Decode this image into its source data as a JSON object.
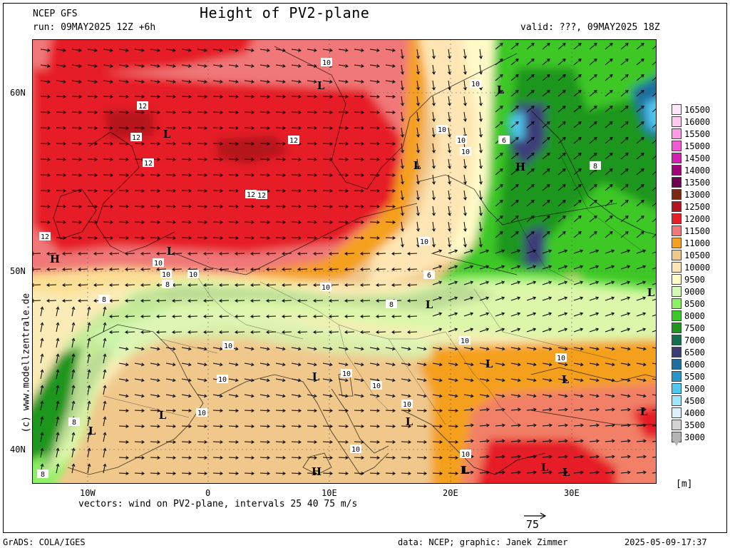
{
  "header": {
    "model": "NCEP GFS",
    "run": "run: 09MAY2025 12Z +6h",
    "title": "Height of PV2-plane",
    "valid": "valid: ???, 09MAY2025 18Z"
  },
  "footer": {
    "vectors": "vectors: wind on PV2-plane, intervals 25 40 75 m/s",
    "scale_value": "75",
    "grads": "GrADS: COLA/IGES",
    "source": "data: NCEP; graphic: Janek Zimmer",
    "timestamp": "2025-05-09-17:37",
    "copyright": "(c) www.modellzentrale.de",
    "unit": "[m]"
  },
  "axes": {
    "lon_ticks": [
      "10W",
      "0",
      "10E",
      "20E",
      "30E"
    ],
    "lat_ticks": [
      "60N",
      "50N",
      "40N"
    ]
  },
  "legend": {
    "entries": [
      {
        "label": "16500",
        "color": "#ffe6f8"
      },
      {
        "label": "16000",
        "color": "#ffcaf0"
      },
      {
        "label": "15500",
        "color": "#ff9ce6"
      },
      {
        "label": "15000",
        "color": "#f05ad2"
      },
      {
        "label": "14500",
        "color": "#d21eb4"
      },
      {
        "label": "14000",
        "color": "#a00078"
      },
      {
        "label": "13500",
        "color": "#6e0050"
      },
      {
        "label": "13000",
        "color": "#7a2814"
      },
      {
        "label": "12500",
        "color": "#b4141e"
      },
      {
        "label": "12000",
        "color": "#e61e28"
      },
      {
        "label": "11500",
        "color": "#f07878"
      },
      {
        "label": "11000",
        "color": "#f5a01e"
      },
      {
        "label": "10500",
        "color": "#f0c88c"
      },
      {
        "label": "10000",
        "color": "#ffe6b4"
      },
      {
        "label": "9500",
        "color": "#fffac8"
      },
      {
        "label": "9000",
        "color": "#d2fab4"
      },
      {
        "label": "8500",
        "color": "#8cf064"
      },
      {
        "label": "8000",
        "color": "#3cc828"
      },
      {
        "label": "7500",
        "color": "#1e961e"
      },
      {
        "label": "7000",
        "color": "#146e50"
      },
      {
        "label": "6500",
        "color": "#3c3c78"
      },
      {
        "label": "6000",
        "color": "#1e6ea0"
      },
      {
        "label": "5500",
        "color": "#2896c8"
      },
      {
        "label": "5000",
        "color": "#50c8f0"
      },
      {
        "label": "4500",
        "color": "#a0e6fa"
      },
      {
        "label": "4000",
        "color": "#dcf0fa"
      },
      {
        "label": "3500",
        "color": "#d2d2d2"
      },
      {
        "label": "3000",
        "color": "#b4b4b4"
      }
    ]
  },
  "map_labels": {
    "contours": [
      "10",
      "10",
      "12",
      "12",
      "12",
      "12",
      "12",
      "12",
      "12",
      "10",
      "10",
      "10",
      "10",
      "10",
      "10",
      "8",
      "8",
      "8",
      "8",
      "10",
      "10",
      "10",
      "10",
      "10",
      "10",
      "10",
      "10",
      "10",
      "10",
      "10",
      "8",
      "10",
      "6",
      "6",
      "8"
    ],
    "pressure_centers": [
      "L",
      "L",
      "L",
      "L",
      "L",
      "L",
      "L",
      "L",
      "L",
      "L",
      "L",
      "L",
      "L",
      "L",
      "L",
      "L",
      "H",
      "H",
      "H",
      "L",
      "L"
    ]
  }
}
